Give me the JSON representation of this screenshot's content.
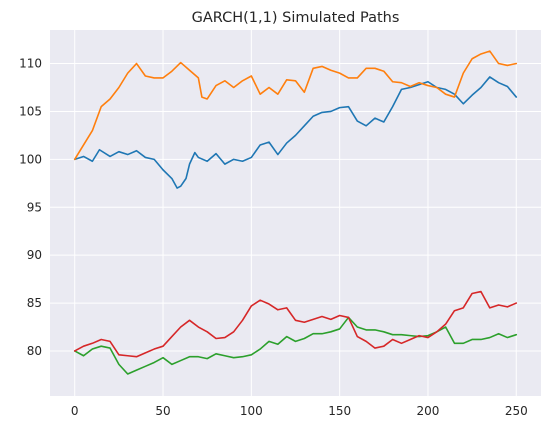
{
  "chart_data": {
    "type": "line",
    "title": "GARCH(1,1) Simulated Paths",
    "xlabel": "",
    "ylabel": "",
    "xlim": [
      -14,
      264
    ],
    "ylim": [
      75.3,
      113.5
    ],
    "xticks": [
      0,
      50,
      100,
      150,
      200,
      250
    ],
    "yticks": [
      80,
      85,
      90,
      95,
      100,
      105,
      110
    ],
    "grid": true,
    "legend": "none",
    "colors": [
      "#1f77b4",
      "#ff7f0e",
      "#2ca02c",
      "#d62728"
    ],
    "series": [
      {
        "color": "#1f77b4",
        "x": [
          0,
          5,
          10,
          14,
          20,
          25,
          30,
          35,
          40,
          45,
          50,
          55,
          58,
          60,
          63,
          65,
          68,
          70,
          75,
          80,
          85,
          90,
          95,
          100,
          105,
          110,
          115,
          120,
          125,
          130,
          135,
          140,
          145,
          150,
          155,
          160,
          165,
          170,
          175,
          180,
          185,
          190,
          195,
          200,
          205,
          210,
          215,
          220,
          225,
          230,
          235,
          240,
          245,
          250
        ],
        "values": [
          100.0,
          100.3,
          99.8,
          101.0,
          100.3,
          100.8,
          100.5,
          100.9,
          100.2,
          100.0,
          98.9,
          98.0,
          97.0,
          97.2,
          98.0,
          99.5,
          100.7,
          100.2,
          99.8,
          100.6,
          99.5,
          100.0,
          99.8,
          100.2,
          101.5,
          101.8,
          100.5,
          101.7,
          102.5,
          103.5,
          104.5,
          104.9,
          105.0,
          105.4,
          105.5,
          104.0,
          103.5,
          104.3,
          103.9,
          105.5,
          107.3,
          107.5,
          107.8,
          108.1,
          107.5,
          107.3,
          106.8,
          105.8,
          106.7,
          107.5,
          108.6,
          108.0,
          107.6,
          106.5
        ]
      },
      {
        "color": "#ff7f0e",
        "x": [
          0,
          5,
          10,
          15,
          20,
          25,
          30,
          35,
          40,
          45,
          50,
          55,
          60,
          65,
          70,
          72,
          75,
          80,
          85,
          90,
          95,
          100,
          105,
          110,
          115,
          120,
          125,
          130,
          135,
          140,
          145,
          150,
          155,
          160,
          165,
          170,
          175,
          180,
          185,
          190,
          195,
          200,
          205,
          210,
          215,
          220,
          225,
          230,
          235,
          240,
          245,
          250
        ],
        "values": [
          100.0,
          101.5,
          103.0,
          105.5,
          106.3,
          107.5,
          109.0,
          110.0,
          108.7,
          108.5,
          108.5,
          109.2,
          110.1,
          109.3,
          108.5,
          106.5,
          106.3,
          107.7,
          108.2,
          107.5,
          108.2,
          108.7,
          106.8,
          107.5,
          106.8,
          108.3,
          108.2,
          107.0,
          109.5,
          109.7,
          109.3,
          109.0,
          108.5,
          108.5,
          109.5,
          109.5,
          109.2,
          108.1,
          108.0,
          107.6,
          108.0,
          107.7,
          107.5,
          106.8,
          106.5,
          109.0,
          110.5,
          111.0,
          111.3,
          110.0,
          109.8,
          110.0
        ]
      },
      {
        "color": "#2ca02c",
        "x": [
          0,
          5,
          10,
          15,
          20,
          25,
          30,
          35,
          40,
          45,
          50,
          55,
          60,
          65,
          70,
          75,
          80,
          85,
          90,
          95,
          100,
          105,
          110,
          115,
          120,
          125,
          130,
          135,
          140,
          145,
          150,
          155,
          160,
          165,
          170,
          175,
          180,
          185,
          190,
          195,
          200,
          205,
          210,
          215,
          220,
          225,
          230,
          235,
          240,
          245,
          250
        ],
        "values": [
          80.0,
          79.5,
          80.2,
          80.5,
          80.3,
          78.6,
          77.6,
          78.0,
          78.4,
          78.8,
          79.3,
          78.6,
          79.0,
          79.4,
          79.4,
          79.2,
          79.7,
          79.5,
          79.3,
          79.4,
          79.6,
          80.2,
          81.0,
          80.7,
          81.5,
          81.0,
          81.3,
          81.8,
          81.8,
          82.0,
          82.3,
          83.5,
          82.5,
          82.2,
          82.2,
          82.0,
          81.7,
          81.7,
          81.6,
          81.5,
          81.6,
          82.0,
          82.5,
          80.8,
          80.8,
          81.2,
          81.2,
          81.4,
          81.8,
          81.4,
          81.7
        ]
      },
      {
        "color": "#d62728",
        "x": [
          0,
          5,
          10,
          15,
          20,
          25,
          30,
          35,
          40,
          45,
          50,
          55,
          60,
          65,
          70,
          75,
          80,
          85,
          90,
          95,
          100,
          105,
          110,
          115,
          120,
          125,
          130,
          135,
          140,
          145,
          150,
          155,
          160,
          165,
          170,
          175,
          180,
          185,
          190,
          195,
          200,
          205,
          210,
          215,
          220,
          225,
          230,
          235,
          240,
          245,
          250
        ],
        "values": [
          80.0,
          80.5,
          80.8,
          81.2,
          81.0,
          79.6,
          79.5,
          79.4,
          79.8,
          80.2,
          80.5,
          81.5,
          82.5,
          83.2,
          82.5,
          82.0,
          81.3,
          81.4,
          82.0,
          83.2,
          84.7,
          85.3,
          84.9,
          84.3,
          84.5,
          83.2,
          83.0,
          83.3,
          83.6,
          83.3,
          83.7,
          83.5,
          81.5,
          81.0,
          80.3,
          80.5,
          81.2,
          80.8,
          81.2,
          81.6,
          81.4,
          82.0,
          82.8,
          84.2,
          84.5,
          86.0,
          86.2,
          84.5,
          84.8,
          84.6,
          85.0
        ]
      }
    ]
  }
}
